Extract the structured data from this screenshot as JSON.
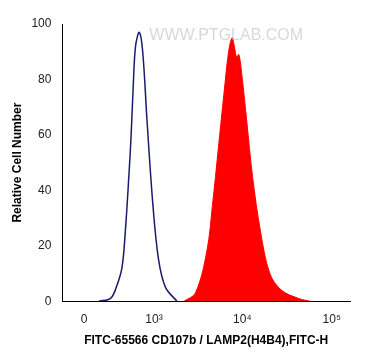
{
  "chart_data": {
    "type": "histogram",
    "x_label": "FITC-65566 CD107b / LAMP2(H4B4),FITC-H",
    "y_label": "Relative Cell Number",
    "annotations": [
      "WWW.PTGLAB.COM"
    ],
    "log": "x",
    "grid": false,
    "xlim": [
      -200,
      160000
    ],
    "xticks": [
      {
        "value": 0,
        "label": "0"
      },
      {
        "value": 1000,
        "label": "10³"
      },
      {
        "value": 10000,
        "label": "10⁴"
      },
      {
        "value": 100000,
        "label": "10⁵"
      }
    ],
    "ylim": [
      0,
      100
    ],
    "yticks": [
      0,
      20,
      40,
      60,
      80,
      100
    ],
    "series": [
      {
        "type": "line",
        "color": "#1a1a6e",
        "x": [
          134,
          249,
          315,
          386,
          432,
          484,
          520,
          555,
          594,
          663,
          731,
          826,
          969,
          1131,
          1362,
          1840
        ],
        "values": [
          0,
          1,
          5,
          12,
          25,
          45,
          60,
          78,
          92,
          97,
          90,
          65,
          35,
          15,
          5,
          0
        ]
      },
      {
        "type": "area",
        "color": "#ff0000",
        "x": [
          2220,
          2980,
          4000,
          4640,
          5380,
          6230,
          7020,
          7670,
          8130,
          8630,
          9150,
          10000,
          11200,
          13000,
          16000,
          20300,
          27300,
          42500,
          57000
        ],
        "values": [
          0,
          3,
          18,
          35,
          55,
          75,
          90,
          95,
          92,
          88,
          89,
          80,
          65,
          45,
          25,
          10,
          4,
          1,
          0
        ]
      }
    ]
  }
}
